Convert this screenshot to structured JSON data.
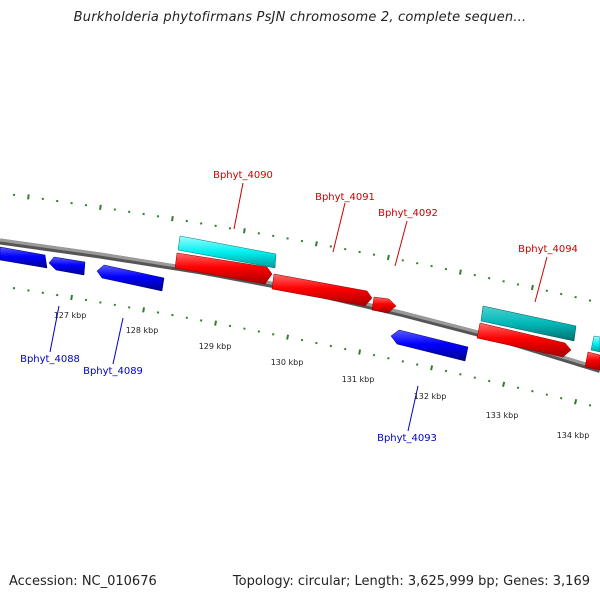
{
  "title": "Burkholderia phytofirmans PsJN chromosome 2, complete sequen...",
  "footer": {
    "accession": "Accession: NC_010676",
    "summary": "Topology: circular; Length: 3,625,999 bp; Genes: 3,169"
  },
  "colors": {
    "backbone": "#8c8c8c",
    "tick": "#2f7f2f",
    "forward_gene": "#ff0000",
    "reverse_gene": "#0000ff",
    "highlight_gene": "#00ffff",
    "forward_label": "#cc0000",
    "reverse_label": "#0000cc"
  },
  "scale_labels": [
    "127 kbp",
    "128 kbp",
    "129 kbp",
    "130 kbp",
    "131 kbp",
    "132 kbp",
    "133 kbp",
    "134 kbp"
  ],
  "gene_labels": {
    "forward": [
      "Bphyt_4090",
      "Bphyt_4091",
      "Bphyt_4092",
      "Bphyt_4094"
    ],
    "reverse": [
      "Bphyt_4088",
      "Bphyt_4089",
      "Bphyt_4093"
    ]
  }
}
